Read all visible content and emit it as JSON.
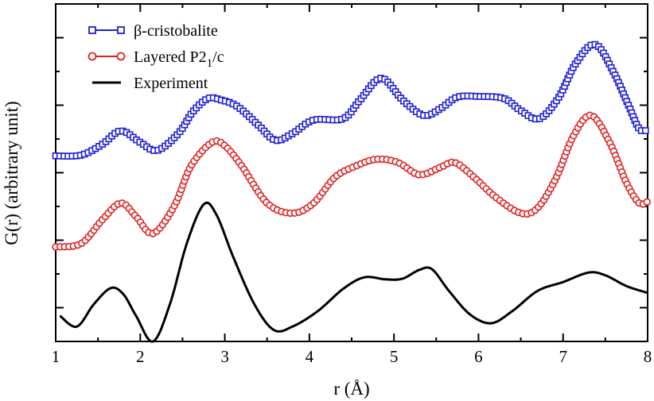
{
  "chart_data": {
    "type": "line",
    "title": "",
    "xlabel": "r (Å)",
    "ylabel": "G(r) (arbitrary unit)",
    "xlim": [
      1,
      8
    ],
    "ylim": [
      -0.5,
      4.5
    ],
    "x_ticks": [
      "1",
      "2",
      "3",
      "4",
      "5",
      "6",
      "7",
      "8"
    ],
    "y_ticks_shown": false,
    "grid": false,
    "legend_position": "top-left",
    "series": [
      {
        "name": "β-cristobalite",
        "legend_label": {
          "main": "β-cristobalite"
        },
        "color": "#1f1fd6",
        "marker": "square",
        "points": [
          [
            1.0,
            2.25
          ],
          [
            1.3,
            2.26
          ],
          [
            1.55,
            2.42
          ],
          [
            1.77,
            2.62
          ],
          [
            2.0,
            2.45
          ],
          [
            2.2,
            2.33
          ],
          [
            2.45,
            2.58
          ],
          [
            2.62,
            2.9
          ],
          [
            2.8,
            3.1
          ],
          [
            2.95,
            3.08
          ],
          [
            3.15,
            2.98
          ],
          [
            3.4,
            2.7
          ],
          [
            3.6,
            2.48
          ],
          [
            3.8,
            2.58
          ],
          [
            4.05,
            2.78
          ],
          [
            4.4,
            2.8
          ],
          [
            4.6,
            3.08
          ],
          [
            4.85,
            3.4
          ],
          [
            5.1,
            3.08
          ],
          [
            5.35,
            2.85
          ],
          [
            5.55,
            2.95
          ],
          [
            5.75,
            3.12
          ],
          [
            6.0,
            3.13
          ],
          [
            6.3,
            3.1
          ],
          [
            6.5,
            2.92
          ],
          [
            6.72,
            2.8
          ],
          [
            6.95,
            3.12
          ],
          [
            7.15,
            3.62
          ],
          [
            7.38,
            3.9
          ],
          [
            7.6,
            3.48
          ],
          [
            7.78,
            2.98
          ],
          [
            7.9,
            2.65
          ],
          [
            8.0,
            2.63
          ]
        ]
      },
      {
        "name": "Layered P2₁/c",
        "legend_label": {
          "main": "Layered P2",
          "sub": "1",
          "tail": "/c"
        },
        "color": "#e02020",
        "marker": "circle",
        "points": [
          [
            1.0,
            0.9
          ],
          [
            1.3,
            0.95
          ],
          [
            1.55,
            1.3
          ],
          [
            1.77,
            1.55
          ],
          [
            1.95,
            1.35
          ],
          [
            2.15,
            1.1
          ],
          [
            2.4,
            1.5
          ],
          [
            2.6,
            2.1
          ],
          [
            2.85,
            2.45
          ],
          [
            3.0,
            2.4
          ],
          [
            3.2,
            2.1
          ],
          [
            3.5,
            1.55
          ],
          [
            3.8,
            1.4
          ],
          [
            4.05,
            1.55
          ],
          [
            4.3,
            1.93
          ],
          [
            4.55,
            2.1
          ],
          [
            4.8,
            2.2
          ],
          [
            5.05,
            2.15
          ],
          [
            5.3,
            1.97
          ],
          [
            5.55,
            2.08
          ],
          [
            5.72,
            2.15
          ],
          [
            5.95,
            1.93
          ],
          [
            6.2,
            1.64
          ],
          [
            6.5,
            1.4
          ],
          [
            6.7,
            1.48
          ],
          [
            6.92,
            1.93
          ],
          [
            7.12,
            2.54
          ],
          [
            7.33,
            2.85
          ],
          [
            7.55,
            2.45
          ],
          [
            7.75,
            1.85
          ],
          [
            7.9,
            1.55
          ],
          [
            8.0,
            1.57
          ]
        ]
      },
      {
        "name": "Experiment",
        "legend_label": {
          "main": "Experiment"
        },
        "color": "#000000",
        "marker": "none",
        "points": [
          [
            1.05,
            -0.12
          ],
          [
            1.25,
            -0.28
          ],
          [
            1.45,
            0.05
          ],
          [
            1.65,
            0.29
          ],
          [
            1.8,
            0.2
          ],
          [
            1.95,
            -0.12
          ],
          [
            2.15,
            -0.5
          ],
          [
            2.35,
            0.05
          ],
          [
            2.55,
            0.95
          ],
          [
            2.75,
            1.53
          ],
          [
            2.9,
            1.38
          ],
          [
            3.1,
            0.75
          ],
          [
            3.35,
            0.05
          ],
          [
            3.58,
            -0.33
          ],
          [
            3.8,
            -0.28
          ],
          [
            4.1,
            -0.05
          ],
          [
            4.4,
            0.28
          ],
          [
            4.65,
            0.45
          ],
          [
            4.9,
            0.42
          ],
          [
            5.1,
            0.43
          ],
          [
            5.3,
            0.56
          ],
          [
            5.45,
            0.57
          ],
          [
            5.65,
            0.25
          ],
          [
            5.9,
            -0.1
          ],
          [
            6.15,
            -0.23
          ],
          [
            6.4,
            -0.05
          ],
          [
            6.7,
            0.25
          ],
          [
            7.0,
            0.38
          ],
          [
            7.3,
            0.52
          ],
          [
            7.5,
            0.48
          ],
          [
            7.75,
            0.32
          ],
          [
            8.0,
            0.22
          ]
        ]
      }
    ]
  }
}
